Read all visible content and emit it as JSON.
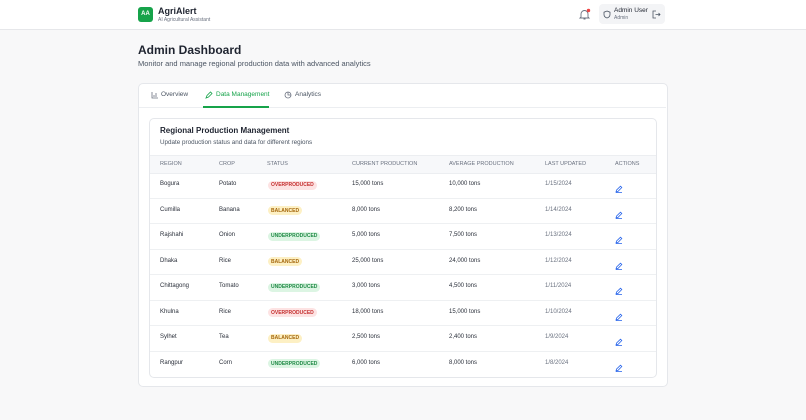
{
  "header": {
    "logo": "AA",
    "app_name": "AgriAlert",
    "tagline": "AI Agricultural Assistant",
    "user_name": "Admin User",
    "user_role": "Admin"
  },
  "page": {
    "title": "Admin Dashboard",
    "subtitle": "Monitor and manage regional production data with advanced analytics"
  },
  "tabs": [
    "Overview",
    "Data Management",
    "Analytics"
  ],
  "active_tab": 1,
  "panel": {
    "title": "Regional Production Management",
    "subtitle": "Update production status and data for different regions"
  },
  "table": {
    "columns": [
      "REGION",
      "CROP",
      "STATUS",
      "CURRENT PRODUCTION",
      "AVERAGE PRODUCTION",
      "LAST UPDATED",
      "ACTIONS"
    ],
    "rows": [
      [
        "Bogura",
        "Potato",
        "OVERPRODUCED",
        "15,000 tons",
        "10,000 tons",
        "1/15/2024"
      ],
      [
        "Cumilla",
        "Banana",
        "BALANCED",
        "8,000 tons",
        "8,200 tons",
        "1/14/2024"
      ],
      [
        "Rajshahi",
        "Onion",
        "UNDERPRODUCED",
        "5,000 tons",
        "7,500 tons",
        "1/13/2024"
      ],
      [
        "Dhaka",
        "Rice",
        "BALANCED",
        "25,000 tons",
        "24,000 tons",
        "1/12/2024"
      ],
      [
        "Chittagong",
        "Tomato",
        "UNDERPRODUCED",
        "3,000 tons",
        "4,500 tons",
        "1/11/2024"
      ],
      [
        "Khulna",
        "Rice",
        "OVERPRODUCED",
        "18,000 tons",
        "15,000 tons",
        "1/10/2024"
      ],
      [
        "Sylhet",
        "Tea",
        "BALANCED",
        "2,500 tons",
        "2,400 tons",
        "1/9/2024"
      ],
      [
        "Rangpur",
        "Corn",
        "UNDERPRODUCED",
        "6,000 tons",
        "8,000 tons",
        "1/8/2024"
      ]
    ]
  },
  "status_colors": {
    "OVERPRODUCED": [
      "#fde3e3",
      "#c53030"
    ],
    "BALANCED": [
      "#fdf0c4",
      "#a4660b"
    ],
    "UNDERPRODUCED": [
      "#dcf5e3",
      "#1f8a45"
    ]
  }
}
